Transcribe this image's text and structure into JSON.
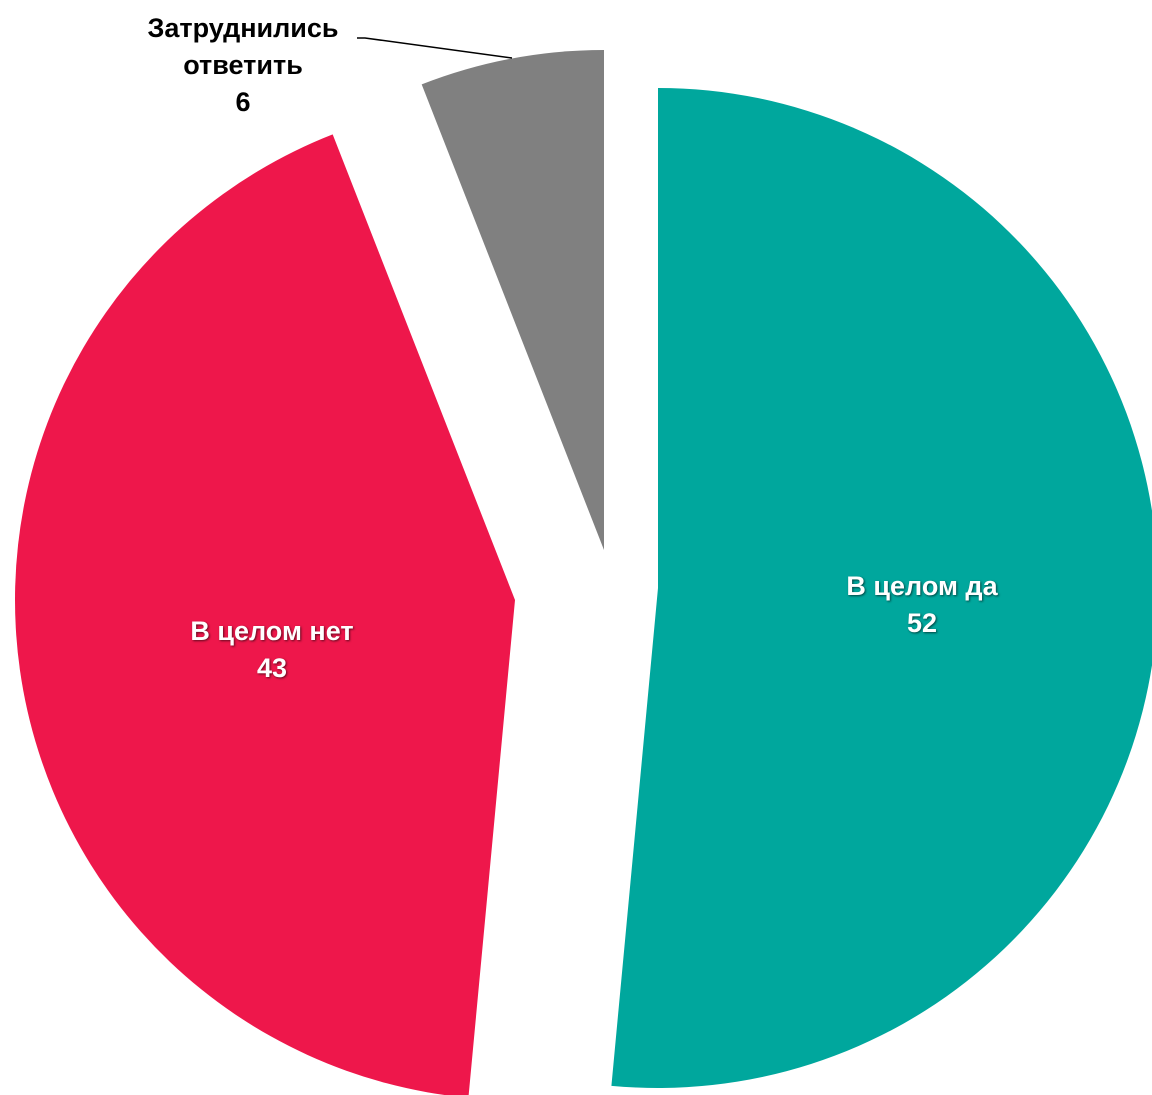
{
  "chart_data": {
    "type": "pie",
    "categories": [
      "В целом да",
      "В целом нет",
      "Затруднились ответить"
    ],
    "values": [
      52,
      43,
      6
    ],
    "colors": [
      "#00a79d",
      "#ee174b",
      "#808080"
    ]
  }
}
